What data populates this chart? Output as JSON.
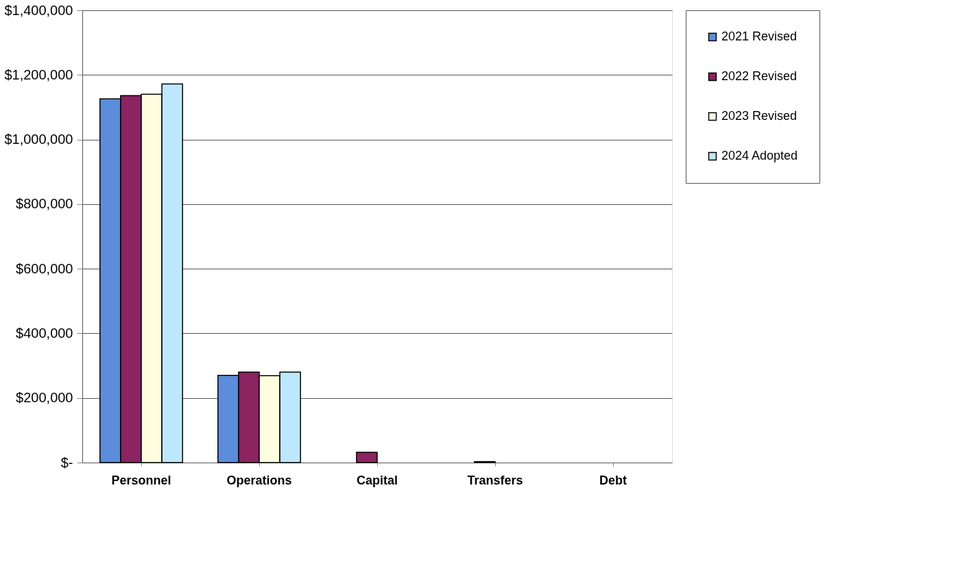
{
  "chart_data": {
    "type": "bar",
    "categories": [
      "Personnel",
      "Operations",
      "Capital",
      "Transfers",
      "Debt"
    ],
    "series": [
      {
        "name": "2021 Revised",
        "color": "#5b8ddb",
        "values": [
          1126000,
          270000,
          null,
          null,
          null
        ]
      },
      {
        "name": "2022 Revised",
        "color": "#8b2461",
        "values": [
          1136000,
          280000,
          32000,
          3000,
          null
        ]
      },
      {
        "name": "2023 Revised",
        "color": "#fffde0",
        "values": [
          1140000,
          269000,
          null,
          null,
          null
        ]
      },
      {
        "name": "2024 Adopted",
        "color": "#bde8fb",
        "values": [
          1172000,
          280000,
          null,
          null,
          null
        ]
      }
    ],
    "ylim": [
      0,
      1400000
    ],
    "yticks": [
      {
        "value": 0,
        "label": "$-"
      },
      {
        "value": 200000,
        "label": "$200,000"
      },
      {
        "value": 400000,
        "label": "$400,000"
      },
      {
        "value": 600000,
        "label": "$600,000"
      },
      {
        "value": 800000,
        "label": "$800,000"
      },
      {
        "value": 1000000,
        "label": "$1,000,000"
      },
      {
        "value": 1200000,
        "label": "$1,200,000"
      },
      {
        "value": 1400000,
        "label": "$1,400,000"
      }
    ],
    "grid": "y",
    "legend": "right"
  }
}
